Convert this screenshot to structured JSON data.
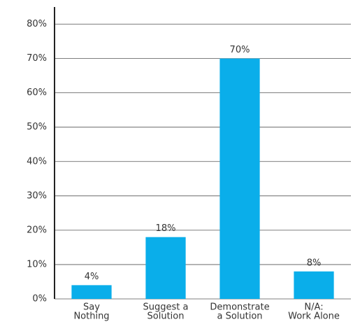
{
  "chart_data": {
    "type": "bar",
    "categories": [
      [
        "Say",
        "Nothing"
      ],
      [
        "Suggest a",
        "Solution"
      ],
      [
        "Demonstrate",
        "a Solution"
      ],
      [
        "N/A:",
        "Work Alone"
      ]
    ],
    "values": [
      4,
      18,
      70,
      8
    ],
    "value_labels": [
      "4%",
      "18%",
      "70%",
      "8%"
    ],
    "color": "#0aaeea",
    "ylim": [
      0,
      85
    ],
    "yticks": [
      {
        "value": 0,
        "label": "0%"
      },
      {
        "value": 10,
        "label": "10%"
      },
      {
        "value": 20,
        "label": "20%"
      },
      {
        "value": 30,
        "label": "30%"
      },
      {
        "value": 40,
        "label": "40%"
      },
      {
        "value": 50,
        "label": "50%"
      },
      {
        "value": 60,
        "label": "60%"
      },
      {
        "value": 70,
        "label": "70%"
      },
      {
        "value": 80,
        "label": "80%"
      }
    ],
    "grid": true
  }
}
